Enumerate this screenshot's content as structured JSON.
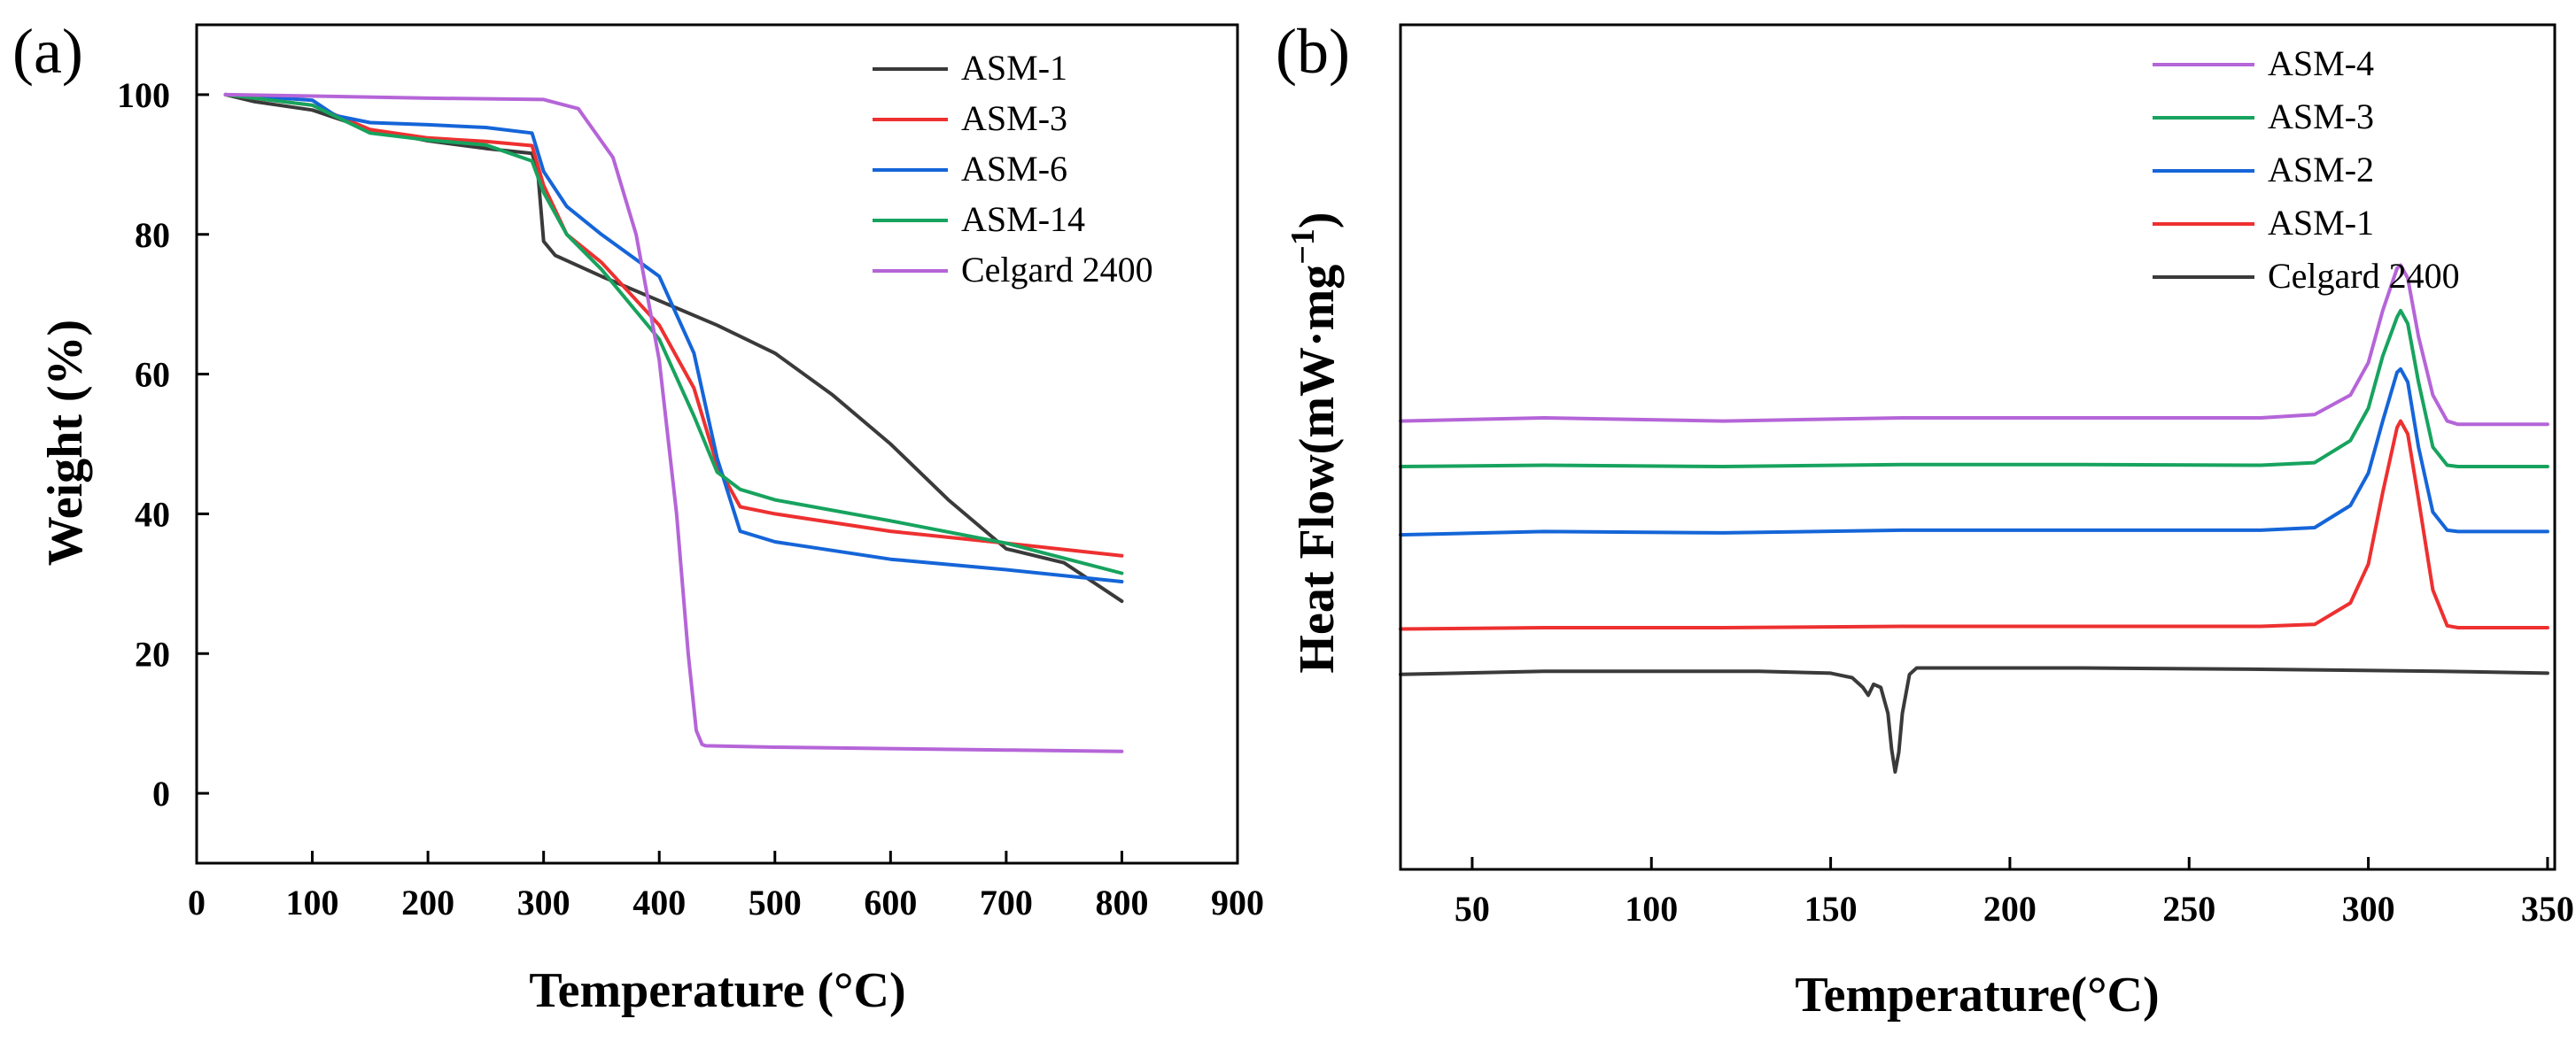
{
  "chart_data": [
    {
      "type": "line",
      "panel_label": "(a)",
      "xlabel": "Temperature (°C)",
      "ylabel": "Weight (%)",
      "xlim": [
        0,
        900
      ],
      "ylim": [
        -10,
        110
      ],
      "xticks": [
        0,
        100,
        200,
        300,
        400,
        500,
        600,
        700,
        800,
        900
      ],
      "yticks": [
        0,
        20,
        40,
        60,
        80,
        100
      ],
      "legend_position": "top-right",
      "series": [
        {
          "name": "ASM-1",
          "color": "#3a3a3a",
          "x": [
            25,
            50,
            100,
            150,
            200,
            250,
            290,
            295,
            300,
            310,
            350,
            400,
            450,
            500,
            550,
            600,
            650,
            700,
            750,
            800
          ],
          "y": [
            100,
            99,
            97.8,
            95,
            93.4,
            92.3,
            91.6,
            89,
            79,
            77,
            74,
            70.5,
            67,
            63,
            57,
            50,
            42,
            35,
            33,
            27.5
          ]
        },
        {
          "name": "ASM-3",
          "color": "#ee3030",
          "x": [
            25,
            50,
            100,
            150,
            200,
            250,
            290,
            300,
            320,
            350,
            400,
            430,
            450,
            470,
            500,
            600,
            700,
            800
          ],
          "y": [
            100,
            99.5,
            98.5,
            95,
            93.8,
            93.3,
            92.7,
            87,
            80,
            76,
            67,
            58,
            47,
            41,
            40,
            37.5,
            35.8,
            34
          ]
        },
        {
          "name": "ASM-6",
          "color": "#1565d8",
          "x": [
            25,
            50,
            100,
            120,
            150,
            200,
            250,
            290,
            300,
            320,
            350,
            400,
            430,
            450,
            470,
            500,
            600,
            700,
            800
          ],
          "y": [
            100,
            99.8,
            99.2,
            97,
            96,
            95.7,
            95.3,
            94.5,
            89,
            84,
            80,
            74,
            63,
            48,
            37.5,
            36,
            33.5,
            32,
            30.3
          ]
        },
        {
          "name": "ASM-14",
          "color": "#17a35e",
          "x": [
            25,
            50,
            100,
            150,
            200,
            250,
            290,
            300,
            320,
            350,
            400,
            430,
            450,
            470,
            500,
            600,
            700,
            800
          ],
          "y": [
            100,
            99.5,
            98.5,
            94.5,
            93.5,
            92.8,
            90.5,
            86,
            80,
            75,
            65,
            54,
            46,
            43.5,
            42,
            39,
            35.8,
            31.5
          ]
        },
        {
          "name": "Celgard 2400",
          "color": "#b565d8",
          "x": [
            25,
            100,
            200,
            300,
            330,
            360,
            380,
            400,
            415,
            425,
            432,
            437,
            440,
            500,
            600,
            700,
            800
          ],
          "y": [
            100,
            99.8,
            99.5,
            99.3,
            98,
            91,
            80,
            62,
            40,
            20,
            9,
            7,
            6.8,
            6.6,
            6.4,
            6.2,
            6
          ]
        }
      ]
    },
    {
      "type": "line",
      "panel_label": "(b)",
      "xlabel": "Temperature(°C)",
      "ylabel": "Heat Flow(mW·mg",
      "ylabel_superscript": "−1",
      "ylabel_close": ")",
      "xlim": [
        30,
        352
      ],
      "ylim": [
        -1.5,
        11.5
      ],
      "xticks": [
        50,
        100,
        150,
        200,
        250,
        300,
        350
      ],
      "yticks": [],
      "legend_position": "top-right",
      "series": [
        {
          "name": "ASM-4",
          "color": "#b565d8",
          "x": [
            30,
            70,
            120,
            170,
            220,
            270,
            285,
            295,
            300,
            304,
            308,
            309,
            311,
            314,
            318,
            322,
            325,
            335,
            350
          ],
          "y": [
            5.4,
            5.45,
            5.4,
            5.45,
            5.45,
            5.45,
            5.5,
            5.8,
            6.3,
            7.1,
            7.75,
            7.8,
            7.6,
            6.7,
            5.8,
            5.4,
            5.35,
            5.35,
            5.35
          ]
        },
        {
          "name": "ASM-3",
          "color": "#17a35e",
          "x": [
            30,
            70,
            120,
            170,
            220,
            270,
            285,
            295,
            300,
            304,
            308,
            309,
            311,
            314,
            318,
            322,
            325,
            335,
            350
          ],
          "y": [
            4.7,
            4.72,
            4.7,
            4.73,
            4.73,
            4.72,
            4.76,
            5.1,
            5.6,
            6.4,
            7.0,
            7.1,
            6.9,
            6.0,
            5.0,
            4.72,
            4.7,
            4.7,
            4.7
          ]
        },
        {
          "name": "ASM-2",
          "color": "#1565d8",
          "x": [
            30,
            70,
            120,
            170,
            220,
            270,
            285,
            295,
            300,
            304,
            308,
            309,
            311,
            314,
            318,
            322,
            325,
            335,
            350
          ],
          "y": [
            3.65,
            3.7,
            3.68,
            3.72,
            3.72,
            3.72,
            3.76,
            4.1,
            4.6,
            5.4,
            6.15,
            6.2,
            6.0,
            5.0,
            4.0,
            3.72,
            3.7,
            3.7,
            3.7
          ]
        },
        {
          "name": "ASM-1",
          "color": "#ee3030",
          "x": [
            30,
            70,
            120,
            170,
            220,
            270,
            285,
            295,
            300,
            304,
            308,
            309,
            311,
            314,
            318,
            322,
            325,
            335,
            350
          ],
          "y": [
            2.2,
            2.22,
            2.22,
            2.24,
            2.24,
            2.24,
            2.27,
            2.6,
            3.2,
            4.3,
            5.3,
            5.4,
            5.2,
            4.2,
            2.8,
            2.25,
            2.22,
            2.22,
            2.22
          ]
        },
        {
          "name": "Celgard 2400",
          "color": "#3a3a3a",
          "x": [
            30,
            70,
            100,
            130,
            150,
            156,
            159,
            160.5,
            162,
            164,
            166,
            167,
            168,
            169,
            170,
            172,
            174,
            180,
            220,
            270,
            320,
            350
          ],
          "y": [
            1.5,
            1.55,
            1.55,
            1.55,
            1.52,
            1.45,
            1.3,
            1.18,
            1.35,
            1.3,
            0.9,
            0.35,
            0.0,
            0.3,
            0.9,
            1.5,
            1.6,
            1.6,
            1.6,
            1.58,
            1.55,
            1.52
          ]
        }
      ]
    }
  ]
}
